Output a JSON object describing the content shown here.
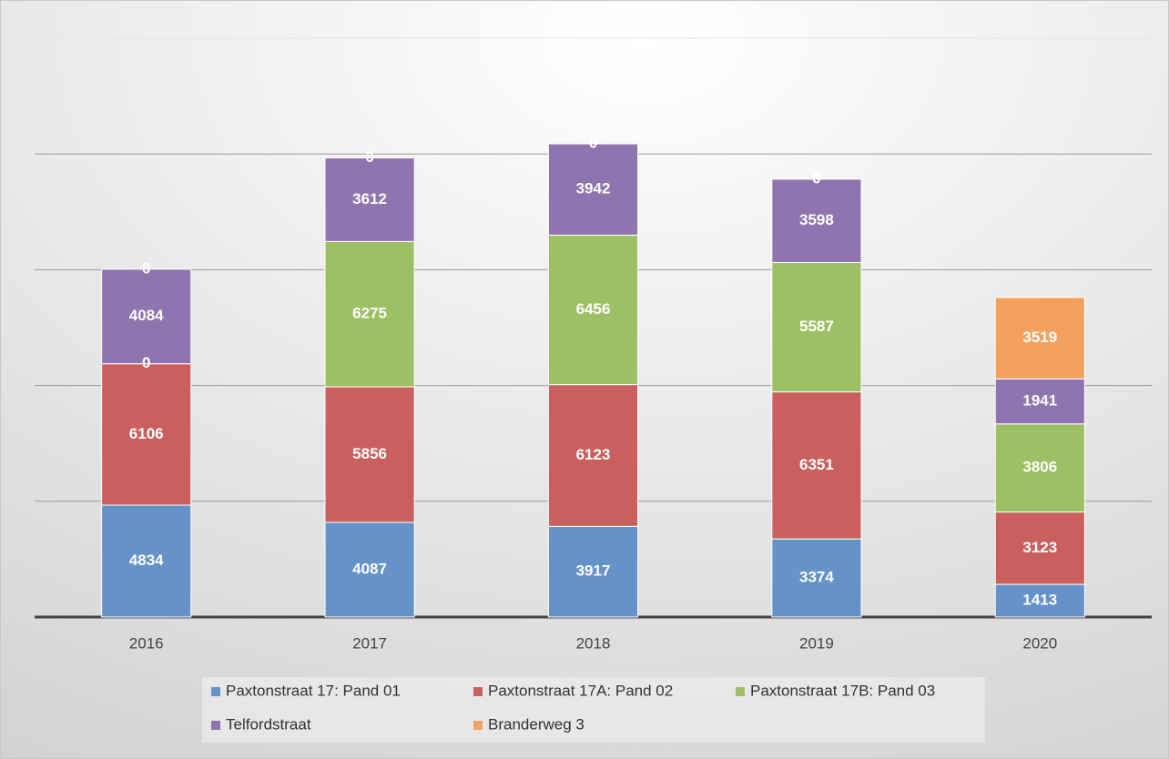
{
  "chart_data": {
    "type": "stacked_bar",
    "categories": [
      "2016",
      "2017",
      "2018",
      "2019",
      "2020"
    ],
    "series": [
      {
        "name": "Paxtonstraat 17: Pand 01",
        "color": "#6592c9",
        "values": [
          4834,
          4087,
          3917,
          3374,
          1413
        ]
      },
      {
        "name": "Paxtonstraat 17A: Pand 02",
        "color": "#c9605d",
        "values": [
          6106,
          5856,
          6123,
          6351,
          3123
        ]
      },
      {
        "name": "Paxtonstraat 17B: Pand 03",
        "color": "#9dc064",
        "values": [
          0,
          6275,
          6456,
          5587,
          3806
        ]
      },
      {
        "name": "Telfordstraat",
        "color": "#8f74b0",
        "values": [
          4084,
          3612,
          3942,
          3598,
          1941
        ]
      },
      {
        "name": "Branderweg 3",
        "color": "#f4a15f",
        "values": [
          0,
          0,
          0,
          0,
          3519
        ]
      }
    ],
    "ylim": [
      0,
      25000
    ],
    "yticks": [
      0,
      5000,
      10000,
      15000,
      20000,
      25000
    ],
    "grid": true
  }
}
